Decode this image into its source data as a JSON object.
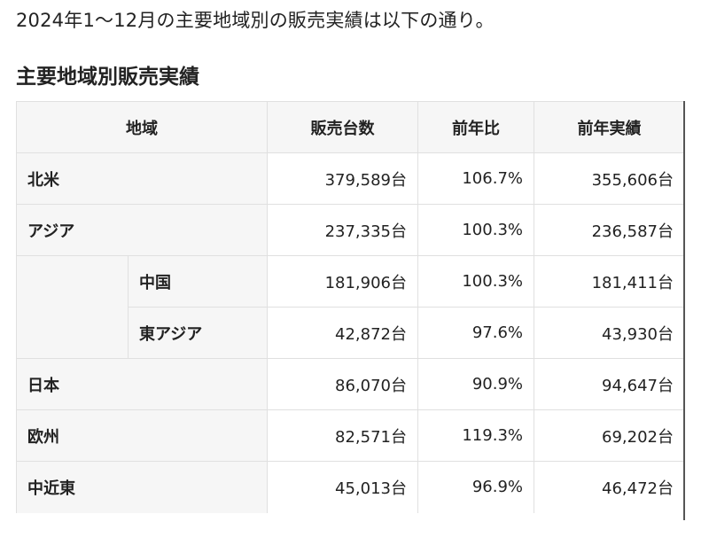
{
  "intro_text": "2024年1〜12月の主要地域別の販売実績は以下の通り。",
  "section_heading": "主要地域別販売実績",
  "table": {
    "headers": {
      "region": "地域",
      "sales": "販売台数",
      "yoy": "前年比",
      "prev": "前年実績"
    },
    "rows": [
      {
        "region": "北米",
        "sales": "379,589台",
        "yoy": "106.7%",
        "prev": "355,606台"
      },
      {
        "region": "アジア",
        "sales": "237,335台",
        "yoy": "100.3%",
        "prev": "236,587台"
      },
      {
        "region": "中国",
        "sales": "181,906台",
        "yoy": "100.3%",
        "prev": "181,411台"
      },
      {
        "region": "東アジア",
        "sales": "42,872台",
        "yoy": "97.6%",
        "prev": "43,930台"
      },
      {
        "region": "日本",
        "sales": "86,070台",
        "yoy": "90.9%",
        "prev": "94,647台"
      },
      {
        "region": "欧州",
        "sales": "82,571台",
        "yoy": "119.3%",
        "prev": "69,202台"
      },
      {
        "region": "中近東",
        "sales": "45,013台",
        "yoy": "96.9%",
        "prev": "46,472台"
      }
    ]
  }
}
